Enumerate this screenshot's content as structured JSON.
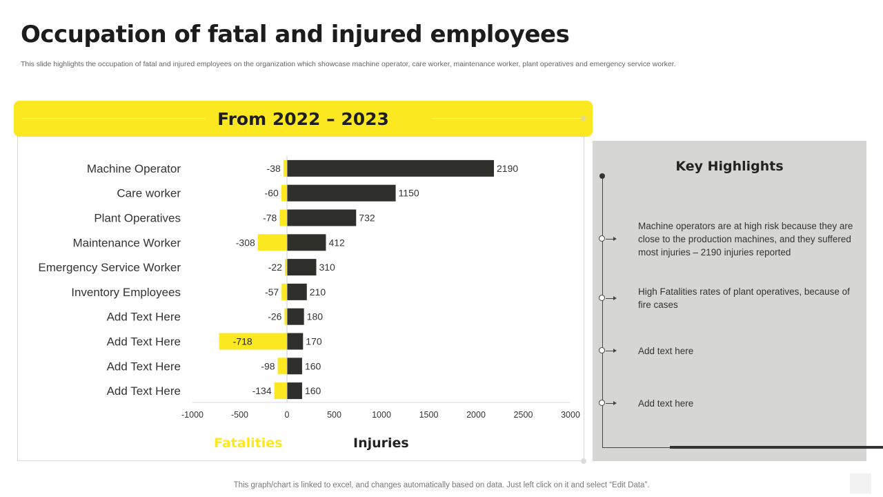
{
  "title": "Occupation of fatal and injured employees",
  "subtitle": "This slide highlights the occupation of fatal and injured employees on the organization which showcase machine operator, care worker, maintenance worker, plant operatives and emergency service worker.",
  "banner": "From 2022 – 2023",
  "colors": {
    "fatalities": "#fbe821",
    "injuries": "#2f302c",
    "panel": "#d6d6d4"
  },
  "chart_data": {
    "type": "bar",
    "orientation": "horizontal",
    "title": "From 2022 – 2023",
    "categories": [
      "Machine Operator",
      "Care worker",
      "Plant Operatives",
      "Maintenance Worker",
      "Emergency Service Worker",
      "Inventory Employees",
      "Add Text Here",
      "Add Text Here",
      "Add Text Here",
      "Add Text Here"
    ],
    "series": [
      {
        "name": "Fatalities",
        "values": [
          -38,
          -60,
          -78,
          -308,
          -22,
          -57,
          -26,
          -718,
          -98,
          -134
        ]
      },
      {
        "name": "Injuries",
        "values": [
          2190,
          1150,
          732,
          412,
          310,
          210,
          180,
          170,
          160,
          160
        ]
      }
    ],
    "xlim": [
      -1000,
      3000
    ],
    "xticks": [
      -1000,
      -500,
      0,
      500,
      1000,
      1500,
      2000,
      2500,
      3000
    ],
    "legend_position": "bottom",
    "grid": false
  },
  "legend": {
    "fatalities": "Fatalities",
    "injuries": "Injuries"
  },
  "highlights": {
    "title": "Key Highlights",
    "items": [
      "Machine operators are at high risk because they are close to the production machines, and they suffered most injuries – 2190 injuries reported",
      "High Fatalities rates of plant operatives, because of fire cases",
      "Add text here",
      "Add text here"
    ]
  },
  "footer": "This graph/chart is linked to excel, and changes automatically based on data. Just left click on it and select “Edit Data”."
}
